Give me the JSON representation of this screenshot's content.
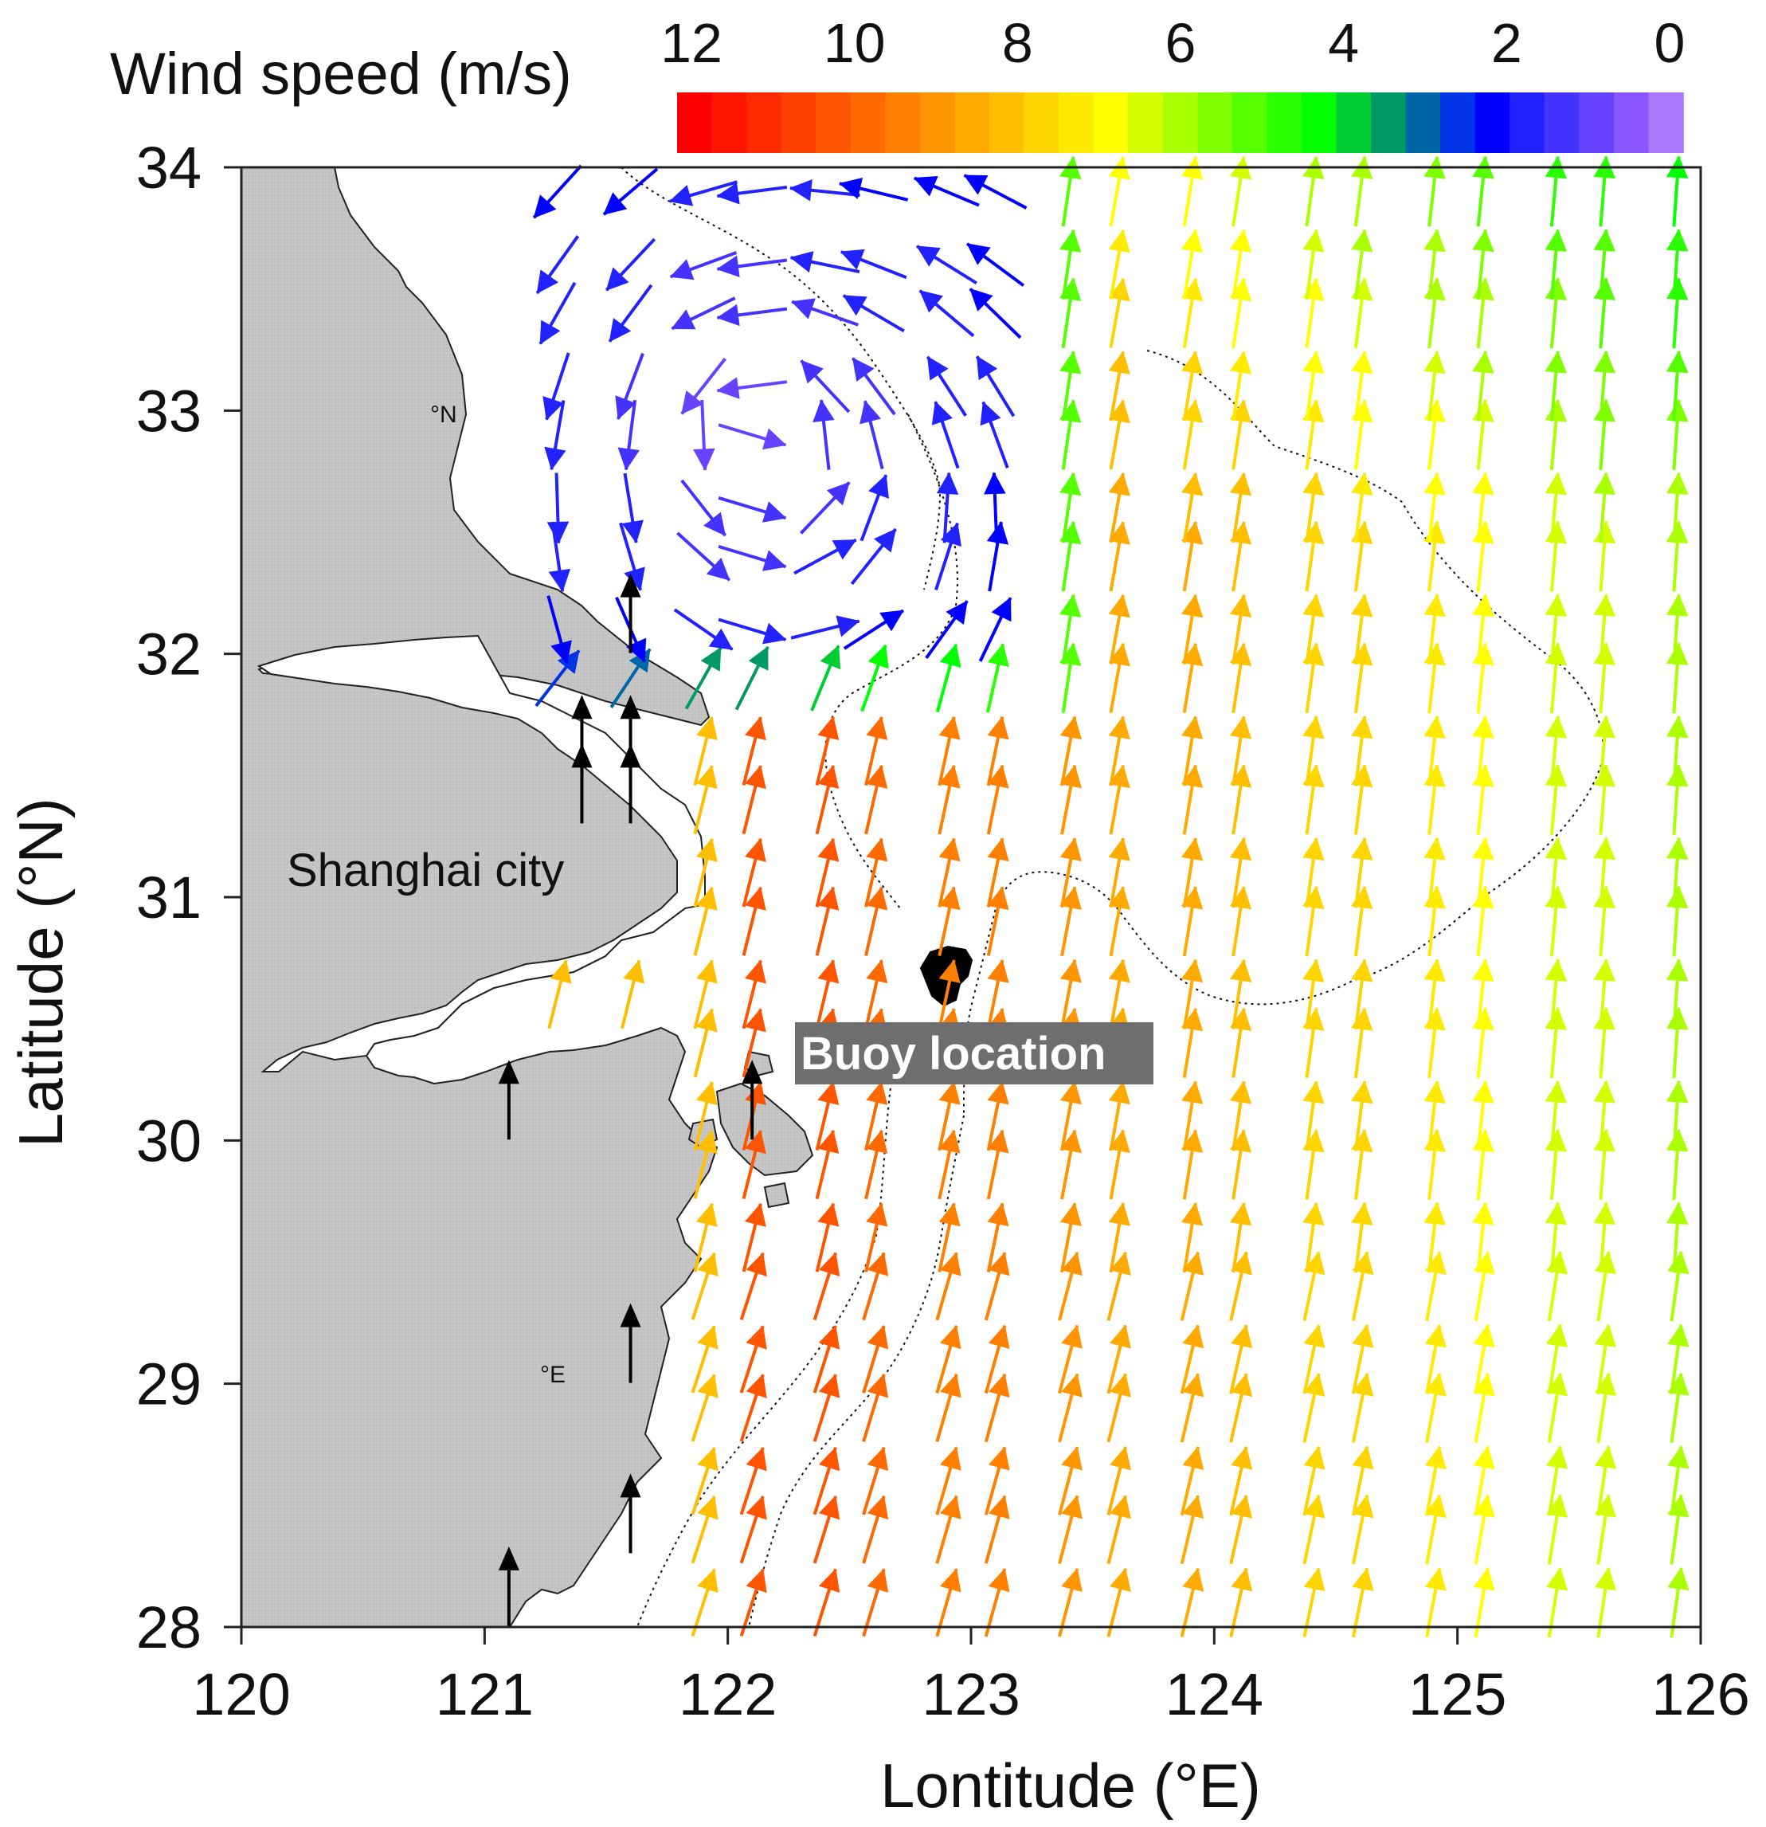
{
  "colorbar": {
    "title": "Wind speed (m/s)",
    "tick_labels": [
      "12",
      "10",
      "8",
      "6",
      "4",
      "2",
      "0"
    ],
    "tick_values": [
      12,
      10,
      8,
      6,
      4,
      2,
      0
    ],
    "colors": [
      "#ff0000",
      "#ff1500",
      "#ff2a00",
      "#ff4000",
      "#ff5500",
      "#ff6a00",
      "#ff8000",
      "#ff9500",
      "#ffaa00",
      "#ffbf00",
      "#ffd500",
      "#ffea00",
      "#ffff00",
      "#d5ff00",
      "#aaff00",
      "#80ff00",
      "#55ff00",
      "#2aff00",
      "#00ff00",
      "#00cc33",
      "#009966",
      "#0066a6",
      "#0033e6",
      "#0000ff",
      "#2222ff",
      "#4433ff",
      "#6644ff",
      "#8855ff",
      "#aa77ff"
    ]
  },
  "axes": {
    "xlabel": "Lontitude (°E)",
    "ylabel": "Latitude (°N)",
    "xlim": [
      120,
      126
    ],
    "ylim": [
      28,
      34
    ],
    "xticks": [
      "120",
      "121",
      "122",
      "123",
      "124",
      "125",
      "126"
    ],
    "yticks": [
      "28",
      "29",
      "30",
      "31",
      "32",
      "33",
      "34"
    ]
  },
  "annotations": {
    "city": "Shanghai city",
    "buoy": "Buoy location",
    "small_n": "°N",
    "small_e": "°E"
  },
  "map": {
    "land_color": "#c4c4c4",
    "arrow_rows_lat": [
      28.1,
      28.4,
      28.6,
      28.9,
      29.1,
      29.4,
      29.6,
      29.9,
      30.1,
      30.4,
      30.6,
      30.9,
      31.1,
      31.4,
      31.6,
      31.9,
      32.1,
      32.4,
      32.6,
      32.9,
      33.1,
      33.4,
      33.6,
      33.9
    ],
    "arrow_cols_lon": [
      121.3,
      121.6,
      121.9,
      122.1,
      122.4,
      122.6,
      122.9,
      123.1,
      123.4,
      123.6,
      123.9,
      124.1,
      124.4,
      124.6,
      124.9,
      125.1,
      125.4,
      125.6,
      125.9
    ]
  },
  "chart_data": {
    "type": "vector_field",
    "x_axis": "Lontitude (°E)",
    "y_axis": "Latitude (°N)",
    "xlim": [
      120,
      126
    ],
    "ylim": [
      28,
      34
    ],
    "colorbar_range_ms": [
      0,
      12
    ],
    "features": {
      "offshore_east_regime": "southerly/south-southwesterly winds, about 5-9 m/s (yellow to orange-red)",
      "strongest_zone": "near 122.5-123.5 °E, 28-31 °N, about 9-11 m/s",
      "north_regime": "weak cyclonic/variable winds north of 32 °N, west of 123 °E, about 0-3 m/s",
      "buoy_position": [
        122.9,
        30.7
      ]
    }
  }
}
